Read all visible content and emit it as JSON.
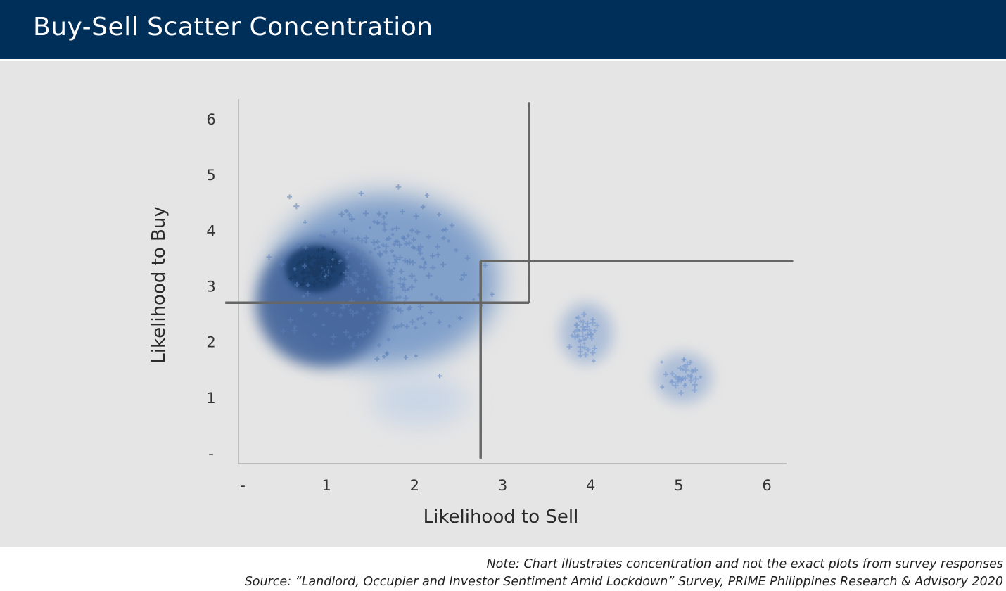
{
  "header": {
    "title": "Buy-Sell Scatter Concentration"
  },
  "colors": {
    "header_bg": "#002f5a",
    "panel_bg": "#e5e5e5",
    "dense_core": "#1e416e",
    "mid_cluster": "#42639a",
    "outer_cloud": "#6f94c6",
    "divider_lines": "#666666"
  },
  "chart_data": {
    "type": "scatter",
    "title": "",
    "xlabel": "Likelihood to Sell",
    "ylabel": "Likelihood to Buy",
    "xlim": [
      0,
      6.2
    ],
    "ylim": [
      -0.1,
      6.3
    ],
    "x_ticks": [
      {
        "value": 0,
        "label": "-"
      },
      {
        "value": 1,
        "label": "1"
      },
      {
        "value": 2,
        "label": "2"
      },
      {
        "value": 3,
        "label": "3"
      },
      {
        "value": 4,
        "label": "4"
      },
      {
        "value": 5,
        "label": "5"
      },
      {
        "value": 6,
        "label": "6"
      }
    ],
    "y_ticks": [
      {
        "value": 0,
        "label": "-"
      },
      {
        "value": 1,
        "label": "1"
      },
      {
        "value": 2,
        "label": "2"
      },
      {
        "value": 3,
        "label": "3"
      },
      {
        "value": 4,
        "label": "4"
      },
      {
        "value": 5,
        "label": "5"
      },
      {
        "value": 6,
        "label": "6"
      }
    ],
    "grid": false,
    "concentration_clusters": [
      {
        "level": "outer",
        "cx": 1.65,
        "cy": 3.1,
        "rx": 1.3,
        "ry": 1.55,
        "color": "#6f94c6"
      },
      {
        "level": "lower-spread",
        "cx": 2.05,
        "cy": 0.95,
        "rx": 0.55,
        "ry": 0.45,
        "color": "#c3d2e6"
      },
      {
        "level": "middle",
        "cx": 0.95,
        "cy": 2.7,
        "rx": 0.75,
        "ry": 1.15,
        "color": "#42639a"
      },
      {
        "level": "core",
        "cx": 0.88,
        "cy": 3.3,
        "rx": 0.35,
        "ry": 0.42,
        "color": "#1e416e"
      },
      {
        "level": "outlier-group",
        "cx": 3.95,
        "cy": 2.15,
        "rx": 0.3,
        "ry": 0.55,
        "color": "#7e9dcc"
      },
      {
        "level": "outlier-group",
        "cx": 5.05,
        "cy": 1.35,
        "rx": 0.32,
        "ry": 0.45,
        "color": "#7e9dcc"
      }
    ],
    "divider_segments": [
      {
        "x": [
          3.3,
          3.3
        ],
        "y": [
          6.3,
          2.7
        ]
      },
      {
        "x": [
          -0.15,
          3.3
        ],
        "y": [
          2.7,
          2.7
        ]
      },
      {
        "x": [
          2.75,
          2.75
        ],
        "y": [
          3.45,
          -0.1
        ]
      },
      {
        "x": [
          2.75,
          6.3
        ],
        "y": [
          3.45,
          3.45
        ]
      }
    ]
  },
  "footer": {
    "note": "Note: Chart illustrates concentration and not the exact plots from survey responses",
    "source": "Source: “Landlord, Occupier and Investor Sentiment Amid Lockdown” Survey, PRIME Philippines Research & Advisory 2020"
  }
}
